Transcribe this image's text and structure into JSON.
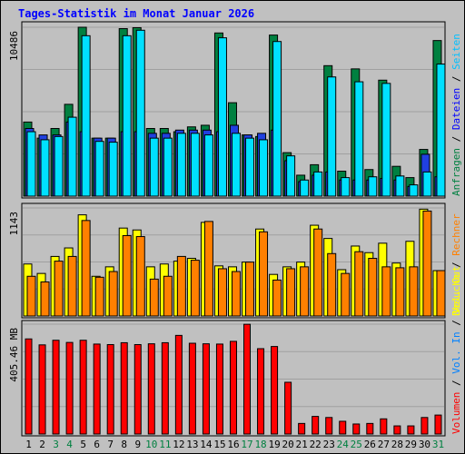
{
  "title": "Tages-Statistik im Monat Januar 2026",
  "colors": {
    "background": "#c0c0c0",
    "panel": "#c0c0c0",
    "title": "#0000ff",
    "anfragen": "#008040",
    "dateien": "#00e0ff",
    "seiten": "#00c0ff",
    "besuche": "#ffff00",
    "rechner": "#ff8000",
    "vol_in": "#0080ff",
    "vol_out": "#ffff00",
    "volumen": "#ff0000",
    "weekend_label": "#008040",
    "day_label": "#000000"
  },
  "chart_data": [
    {
      "type": "bar",
      "title": "Tages-Statistik im Monat Januar 2026",
      "categories": [
        "1",
        "2",
        "3",
        "4",
        "5",
        "6",
        "7",
        "8",
        "9",
        "10",
        "11",
        "12",
        "13",
        "14",
        "15",
        "16",
        "17",
        "18",
        "19",
        "20",
        "21",
        "22",
        "23",
        "24",
        "25",
        "26",
        "27",
        "28",
        "29",
        "30",
        "31"
      ],
      "weekend_days": [
        "3",
        "4",
        "10",
        "11",
        "17",
        "18",
        "24",
        "25",
        "31"
      ],
      "ymax_label": "10486",
      "ylim": [
        0,
        10486
      ],
      "right_label_parts": [
        {
          "text": "Anfragen",
          "color": "#008040"
        },
        {
          "text": "Dateien",
          "color": "#0000ff"
        },
        {
          "text": "Seiten",
          "color": "#00c0ff"
        }
      ],
      "series": [
        {
          "name": "Anfragen",
          "color": "#008040",
          "values": [
            4600,
            3600,
            4200,
            5700,
            10486,
            3600,
            3600,
            10400,
            10460,
            4200,
            4200,
            4000,
            4300,
            4400,
            10130,
            5800,
            3800,
            3700,
            10000,
            2700,
            1300,
            1950,
            8100,
            1550,
            7900,
            1650,
            7200,
            1850,
            1150,
            2900,
            9660
          ]
        },
        {
          "name": "Dateien",
          "color": "#00e0ff",
          "values": [
            4000,
            3500,
            3700,
            4900,
            9960,
            3400,
            3350,
            9960,
            10300,
            3600,
            3600,
            3900,
            3900,
            3800,
            9830,
            3900,
            3600,
            3500,
            9600,
            2500,
            1000,
            1500,
            7400,
            1150,
            7100,
            1200,
            7000,
            1250,
            700,
            1500,
            8200
          ]
        },
        {
          "name": "Seiten",
          "color": "#2040e0",
          "values": [
            4200,
            3800,
            3800,
            4600,
            4000,
            3600,
            3600,
            4000,
            4000,
            3900,
            3900,
            4100,
            4100,
            4100,
            4000,
            4400,
            3800,
            3900,
            4100,
            2200,
            900,
            1300,
            1500,
            1000,
            1000,
            1000,
            1100,
            1000,
            600,
            2600,
            1200
          ]
        }
      ]
    },
    {
      "type": "bar",
      "ymax_label": "1143",
      "ylim": [
        0,
        1143
      ],
      "right_label_parts": [
        {
          "text": "Besuche",
          "color": "#ffff00"
        },
        {
          "text": "Rechner",
          "color": "#ff8000"
        }
      ],
      "series": [
        {
          "name": "Besuche",
          "color": "#ffff00",
          "values": [
            550,
            450,
            630,
            720,
            1070,
            420,
            520,
            930,
            910,
            520,
            550,
            580,
            610,
            990,
            530,
            520,
            570,
            920,
            440,
            520,
            570,
            960,
            820,
            490,
            740,
            670,
            770,
            560,
            790,
            1130,
            480
          ]
        },
        {
          "name": "Rechner",
          "color": "#ff8000",
          "values": [
            420,
            360,
            580,
            630,
            1010,
            410,
            470,
            850,
            840,
            390,
            420,
            630,
            590,
            1000,
            500,
            470,
            570,
            890,
            380,
            500,
            520,
            920,
            660,
            450,
            680,
            610,
            520,
            510,
            520,
            1110,
            480
          ]
        }
      ]
    },
    {
      "type": "bar",
      "ymax_label": "405.46 MB",
      "ylim": [
        0,
        405.46
      ],
      "right_label_parts": [
        {
          "text": "Volumen",
          "color": "#ff0000"
        },
        {
          "text": "Vol. In",
          "color": "#0080ff"
        },
        {
          "text": "Vol. Out",
          "color": "#ffff00"
        }
      ],
      "series": [
        {
          "name": "Volumen",
          "color": "#ff0000",
          "values": [
            351,
            329,
            346,
            338,
            346,
            332,
            330,
            337,
            330,
            333,
            337,
            364,
            335,
            333,
            332,
            342,
            405,
            315,
            323,
            191,
            39,
            65,
            61,
            47,
            37,
            39,
            56,
            30,
            30,
            61,
            70
          ]
        }
      ]
    }
  ]
}
